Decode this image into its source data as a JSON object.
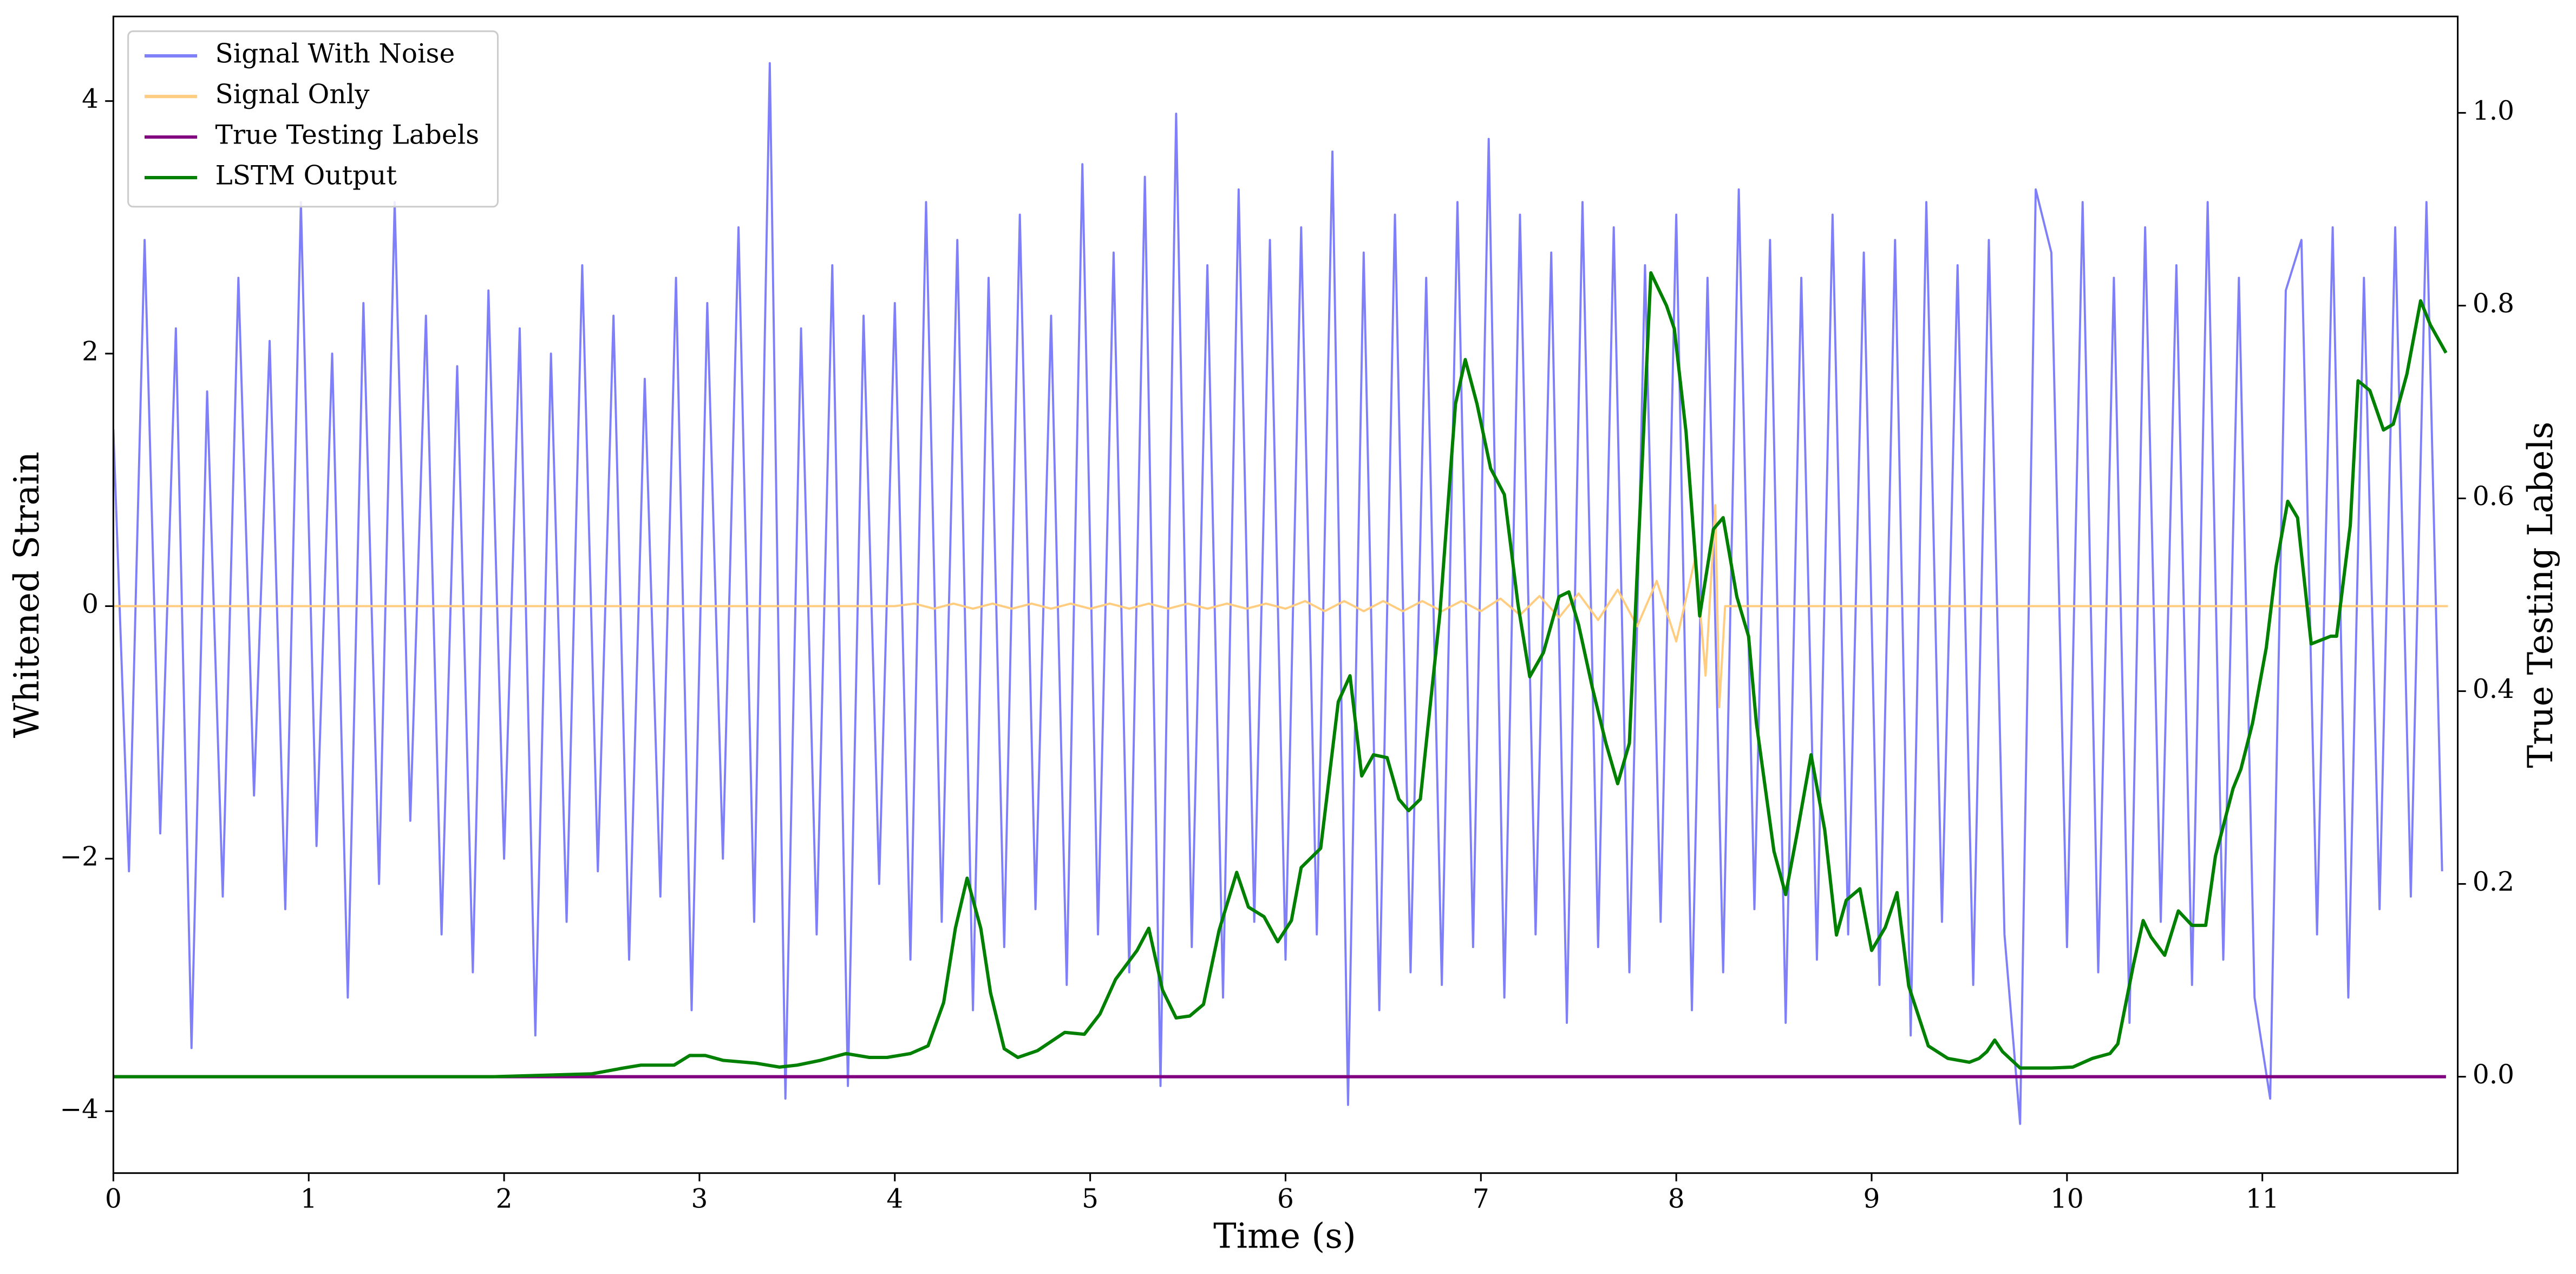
{
  "chart_data": {
    "type": "line",
    "xlabel": "Time (s)",
    "ylabel": "Whitened Strain",
    "y2label": "True Testing Labels",
    "xlim": [
      0,
      12
    ],
    "ylim": [
      -4.49,
      4.67
    ],
    "y2lim": [
      -0.1,
      1.1
    ],
    "xticks": [
      0,
      1,
      2,
      3,
      4,
      5,
      6,
      7,
      8,
      9,
      10,
      11
    ],
    "yticks": [
      {
        "value": -4,
        "label": "−4"
      },
      {
        "value": -2,
        "label": "−2"
      },
      0,
      2,
      4
    ],
    "y2ticks": [
      {
        "value": 0,
        "label": "0.0"
      },
      0.2,
      0.4,
      0.6,
      0.8,
      {
        "value": 1,
        "label": "1.0"
      }
    ],
    "grid": false,
    "legend": "upper-left",
    "series": [
      {
        "name": "Signal With Noise",
        "color": "#7f7ff8",
        "axis": "y",
        "x": [
          0,
          0.08,
          0.16,
          0.24,
          0.32,
          0.4,
          0.48,
          0.56,
          0.64,
          0.72,
          0.8,
          0.88,
          0.96,
          1.04,
          1.12,
          1.2,
          1.28,
          1.36,
          1.44,
          1.52,
          1.6,
          1.68,
          1.76,
          1.84,
          1.92,
          2,
          2.08,
          2.16,
          2.24,
          2.32,
          2.4,
          2.48,
          2.56,
          2.64,
          2.72,
          2.8,
          2.88,
          2.96,
          3.04,
          3.12,
          3.2,
          3.28,
          3.36,
          3.44,
          3.52,
          3.6,
          3.68,
          3.76,
          3.84,
          3.92,
          4,
          4.08,
          4.16,
          4.24,
          4.32,
          4.4,
          4.48,
          4.56,
          4.64,
          4.72,
          4.8,
          4.88,
          4.96,
          5.04,
          5.12,
          5.2,
          5.28,
          5.36,
          5.44,
          5.52,
          5.6,
          5.68,
          5.76,
          5.84,
          5.92,
          6,
          6.08,
          6.16,
          6.24,
          6.32,
          6.4,
          6.48,
          6.56,
          6.64,
          6.72,
          6.8,
          6.88,
          6.96,
          7.04,
          7.12,
          7.2,
          7.28,
          7.36,
          7.44,
          7.52,
          7.6,
          7.68,
          7.76,
          7.84,
          7.92,
          8,
          8.08,
          8.16,
          8.24,
          8.32,
          8.4,
          8.48,
          8.56,
          8.64,
          8.72,
          8.8,
          8.88,
          8.96,
          9.04,
          9.12,
          9.2,
          9.28,
          9.36,
          9.44,
          9.52,
          9.6,
          9.68,
          9.76,
          9.84,
          9.92,
          10,
          10.08,
          10.16,
          10.24,
          10.32,
          10.4,
          10.48,
          10.56,
          10.64,
          10.72,
          10.8,
          10.88,
          10.96,
          11.04,
          11.12,
          11.2,
          11.28,
          11.36,
          11.44,
          11.52,
          11.6,
          11.68,
          11.76,
          11.84,
          11.92
        ],
        "values": [
          1.4,
          -2.1,
          2.9,
          -1.8,
          2.2,
          -3.5,
          1.7,
          -2.3,
          2.6,
          -1.5,
          2.1,
          -2.4,
          3.2,
          -1.9,
          2.0,
          -3.1,
          2.4,
          -2.2,
          3.2,
          -1.7,
          2.3,
          -2.6,
          1.9,
          -2.9,
          2.5,
          -2.0,
          2.2,
          -3.4,
          2.0,
          -2.5,
          2.7,
          -2.1,
          2.3,
          -2.8,
          1.8,
          -2.3,
          2.6,
          -3.2,
          2.4,
          -2.0,
          3.0,
          -2.5,
          4.3,
          -3.9,
          2.2,
          -2.6,
          2.7,
          -3.8,
          2.3,
          -2.2,
          2.4,
          -2.8,
          3.2,
          -2.5,
          2.9,
          -3.2,
          2.6,
          -2.7,
          3.1,
          -2.4,
          2.3,
          -3.0,
          3.5,
          -2.6,
          2.8,
          -2.9,
          3.4,
          -3.8,
          3.9,
          -2.7,
          2.7,
          -3.1,
          3.3,
          -2.5,
          2.9,
          -2.8,
          3.0,
          -2.6,
          3.6,
          -3.95,
          2.8,
          -3.2,
          3.1,
          -2.9,
          2.6,
          -3.0,
          3.2,
          -2.7,
          3.7,
          -3.1,
          3.1,
          -2.6,
          2.8,
          -3.3,
          3.2,
          -2.7,
          3.0,
          -2.9,
          2.7,
          -2.5,
          3.1,
          -3.2,
          2.6,
          -2.9,
          3.3,
          -2.4,
          2.9,
          -3.3,
          2.6,
          -2.8,
          3.1,
          -2.6,
          2.8,
          -3.0,
          2.9,
          -3.4,
          3.2,
          -2.5,
          2.7,
          -3.0,
          2.9,
          -2.6,
          -4.1,
          3.3,
          2.8,
          -2.7,
          3.2,
          -2.9,
          2.6,
          -3.3,
          3.0,
          -2.5,
          2.7,
          -3.0,
          3.2,
          -2.8,
          2.6,
          -3.1,
          -3.9,
          2.5,
          2.9,
          -2.6,
          3.0,
          -3.1,
          2.6,
          -2.4,
          3.0,
          -2.3,
          3.2,
          -2.1
        ]
      },
      {
        "name": "Signal Only",
        "color": "#ffcc80",
        "axis": "y",
        "x": [
          0,
          4.0,
          4.1,
          4.2,
          4.3,
          4.4,
          4.5,
          4.6,
          4.7,
          4.8,
          4.9,
          5.0,
          5.1,
          5.2,
          5.3,
          5.4,
          5.5,
          5.6,
          5.7,
          5.8,
          5.9,
          6.0,
          6.1,
          6.2,
          6.3,
          6.4,
          6.5,
          6.6,
          6.7,
          6.8,
          6.9,
          7.0,
          7.1,
          7.2,
          7.3,
          7.4,
          7.5,
          7.6,
          7.7,
          7.8,
          7.9,
          8.0,
          8.1,
          8.15,
          8.2,
          8.22,
          8.25,
          11.95
        ],
        "values": [
          0,
          0,
          0.02,
          -0.02,
          0.02,
          -0.02,
          0.02,
          -0.02,
          0.02,
          -0.02,
          0.02,
          -0.02,
          0.02,
          -0.02,
          0.02,
          -0.02,
          0.02,
          -0.02,
          0.02,
          -0.02,
          0.02,
          -0.02,
          0.04,
          -0.04,
          0.04,
          -0.04,
          0.04,
          -0.04,
          0.04,
          -0.04,
          0.04,
          -0.04,
          0.06,
          -0.07,
          0.08,
          -0.09,
          0.1,
          -0.11,
          0.13,
          -0.16,
          0.2,
          -0.28,
          0.4,
          -0.55,
          0.8,
          -0.8,
          0,
          0
        ]
      },
      {
        "name": "True Testing Labels",
        "color": "#800080",
        "axis": "y2",
        "x": [
          0,
          11.94
        ],
        "values": [
          0,
          0
        ]
      },
      {
        "name": "LSTM Output",
        "color": "#008000",
        "axis": "y2",
        "x": [
          0,
          1.94,
          2.45,
          2.61,
          2.7,
          2.87,
          2.95,
          3.03,
          3.12,
          3.29,
          3.41,
          3.5,
          3.62,
          3.75,
          3.87,
          3.96,
          4.08,
          4.17,
          4.25,
          4.31,
          4.37,
          4.44,
          4.49,
          4.56,
          4.63,
          4.73,
          4.87,
          4.97,
          5.05,
          5.13,
          5.24,
          5.3,
          5.37,
          5.44,
          5.51,
          5.58,
          5.66,
          5.75,
          5.81,
          5.89,
          5.96,
          6.03,
          6.08,
          6.18,
          6.27,
          6.33,
          6.39,
          6.45,
          6.52,
          6.58,
          6.63,
          6.69,
          6.79,
          6.87,
          6.92,
          6.98,
          7.05,
          7.12,
          7.19,
          7.25,
          7.32,
          7.4,
          7.45,
          7.5,
          7.57,
          7.64,
          7.7,
          7.76,
          7.87,
          7.95,
          7.99,
          8.05,
          8.12,
          8.19,
          8.24,
          8.31,
          8.37,
          8.41,
          8.5,
          8.56,
          8.62,
          8.69,
          8.76,
          8.82,
          8.87,
          8.94,
          9.0,
          9.07,
          9.13,
          9.19,
          9.29,
          9.39,
          9.5,
          9.55,
          9.59,
          9.63,
          9.67,
          9.76,
          9.84,
          9.92,
          10.03,
          10.13,
          10.22,
          10.26,
          10.34,
          10.39,
          10.43,
          10.5,
          10.57,
          10.64,
          10.71,
          10.76,
          10.85,
          10.89,
          10.95,
          11.02,
          11.07,
          11.13,
          11.18,
          11.25,
          11.35,
          11.38,
          11.45,
          11.49,
          11.55,
          11.62,
          11.67,
          11.74,
          11.81,
          11.86,
          11.94
        ],
        "values": [
          0,
          0,
          0.003,
          0.009,
          0.012,
          0.012,
          0.022,
          0.022,
          0.017,
          0.014,
          0.01,
          0.012,
          0.017,
          0.024,
          0.02,
          0.02,
          0.024,
          0.032,
          0.077,
          0.154,
          0.206,
          0.154,
          0.087,
          0.029,
          0.02,
          0.027,
          0.046,
          0.044,
          0.065,
          0.101,
          0.131,
          0.154,
          0.09,
          0.061,
          0.063,
          0.075,
          0.152,
          0.212,
          0.176,
          0.166,
          0.14,
          0.162,
          0.217,
          0.237,
          0.389,
          0.416,
          0.312,
          0.334,
          0.331,
          0.288,
          0.276,
          0.288,
          0.48,
          0.698,
          0.744,
          0.698,
          0.631,
          0.604,
          0.49,
          0.415,
          0.44,
          0.498,
          0.503,
          0.469,
          0.404,
          0.346,
          0.304,
          0.346,
          0.834,
          0.8,
          0.776,
          0.669,
          0.478,
          0.568,
          0.58,
          0.498,
          0.457,
          0.367,
          0.234,
          0.189,
          0.254,
          0.334,
          0.256,
          0.147,
          0.183,
          0.195,
          0.131,
          0.155,
          0.191,
          0.094,
          0.032,
          0.019,
          0.015,
          0.019,
          0.026,
          0.038,
          0.026,
          0.009,
          0.009,
          0.009,
          0.01,
          0.019,
          0.024,
          0.034,
          0.116,
          0.162,
          0.145,
          0.126,
          0.172,
          0.157,
          0.157,
          0.229,
          0.299,
          0.319,
          0.367,
          0.445,
          0.529,
          0.597,
          0.58,
          0.449,
          0.457,
          0.457,
          0.572,
          0.722,
          0.712,
          0.671,
          0.677,
          0.729,
          0.805,
          0.78,
          0.751
        ]
      }
    ]
  }
}
